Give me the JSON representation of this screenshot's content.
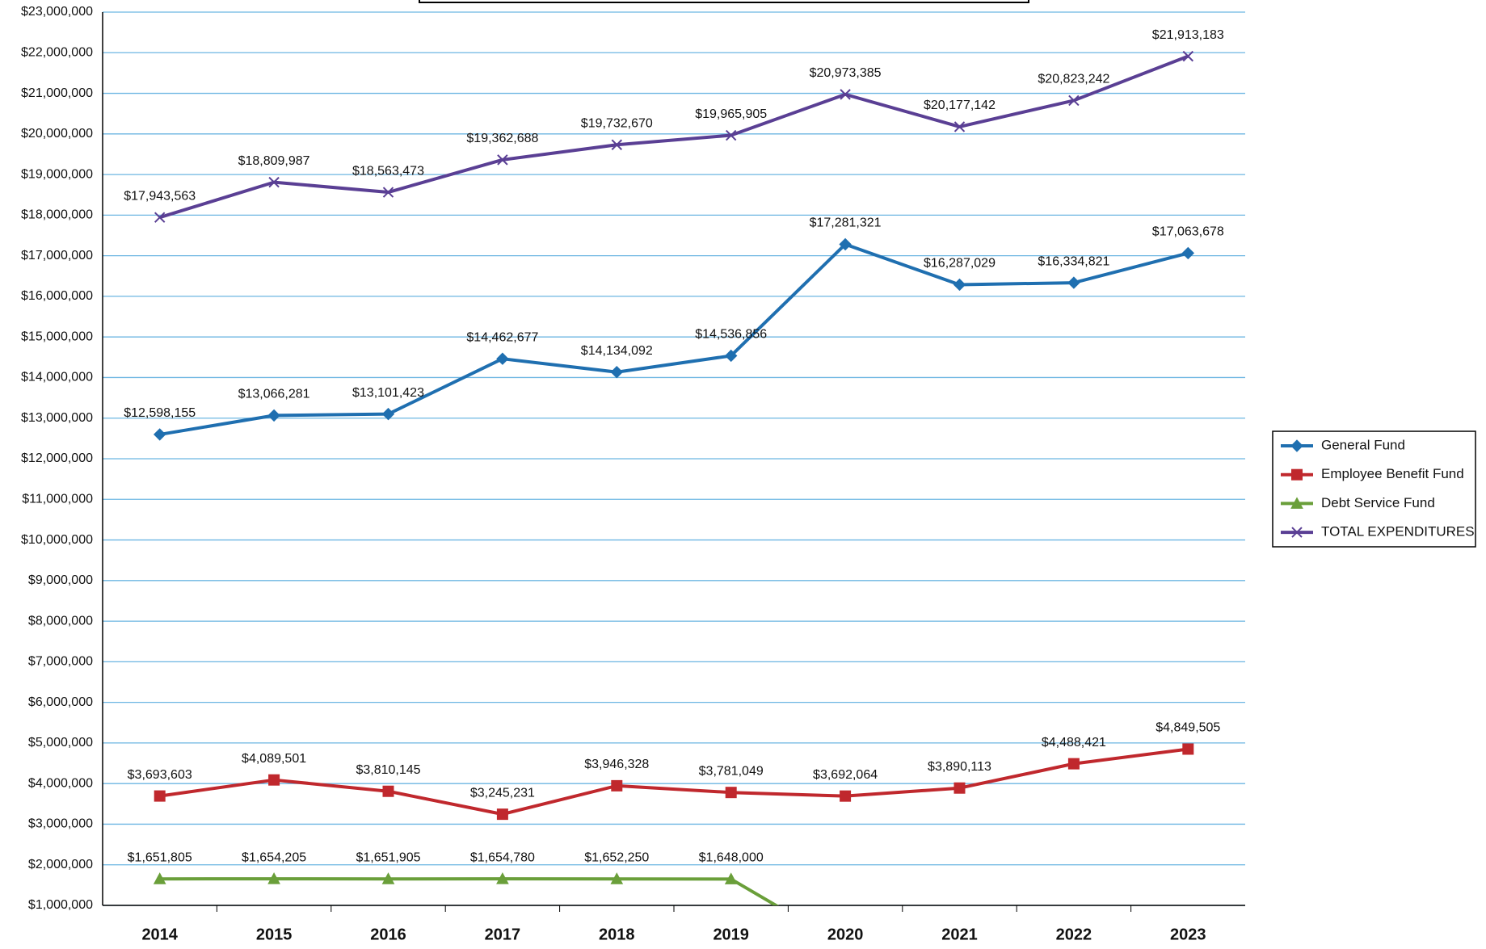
{
  "chart_data": {
    "type": "line",
    "categories": [
      "2014",
      "2015",
      "2016",
      "2017",
      "2018",
      "2019",
      "2020",
      "2021",
      "2022",
      "2023"
    ],
    "series": [
      {
        "name": "General Fund",
        "color": "#1f6fb0",
        "marker": "diamond",
        "values": [
          12598155,
          13066281,
          13101423,
          14462677,
          14134092,
          14536856,
          17281321,
          16287029,
          16334821,
          17063678
        ],
        "value_labels": [
          "$12,598,155",
          "$13,066,281",
          "$13,101,423",
          "$14,462,677",
          "$14,134,092",
          "$14,536,856",
          "$17,281,321",
          "$16,287,029",
          "$16,334,821",
          "$17,063,678"
        ]
      },
      {
        "name": "Employee Benefit Fund",
        "color": "#c0282d",
        "marker": "square",
        "values": [
          3693603,
          4089501,
          3810145,
          3245231,
          3946328,
          3781049,
          3692064,
          3890113,
          4488421,
          4849505
        ],
        "value_labels": [
          "$3,693,603",
          "$4,089,501",
          "$3,810,145",
          "$3,245,231",
          "$3,946,328",
          "$3,781,049",
          "$3,692,064",
          "$3,890,113",
          "$4,488,421",
          "$4,849,505"
        ]
      },
      {
        "name": "Debt Service Fund",
        "color": "#6a9f3a",
        "marker": "triangle",
        "values": [
          1651805,
          1654205,
          1651905,
          1654780,
          1652250,
          1648000,
          0,
          0,
          0,
          0
        ],
        "value_labels": [
          "$1,651,805",
          "$1,654,205",
          "$1,651,905",
          "$1,654,780",
          "$1,652,250",
          "$1,648,000",
          null,
          null,
          null,
          null
        ]
      },
      {
        "name": "TOTAL EXPENDITURES",
        "color": "#5a3f94",
        "marker": "x",
        "values": [
          17943563,
          18809987,
          18563473,
          19362688,
          19732670,
          19965905,
          20973385,
          20177142,
          20823242,
          21913183
        ],
        "value_labels": [
          "$17,943,563",
          "$18,809,987",
          "$18,563,473",
          "$19,362,688",
          "$19,732,670",
          "$19,965,905",
          "$20,973,385",
          "$20,177,142",
          "$20,823,242",
          "$21,913,183"
        ]
      }
    ],
    "ylim": [
      1000000,
      23000000
    ],
    "yticks": [
      {
        "value": 1000000,
        "label": "$1,000,000"
      },
      {
        "value": 2000000,
        "label": "$2,000,000"
      },
      {
        "value": 3000000,
        "label": "$3,000,000"
      },
      {
        "value": 4000000,
        "label": "$4,000,000"
      },
      {
        "value": 5000000,
        "label": "$5,000,000"
      },
      {
        "value": 6000000,
        "label": "$6,000,000"
      },
      {
        "value": 7000000,
        "label": "$7,000,000"
      },
      {
        "value": 8000000,
        "label": "$8,000,000"
      },
      {
        "value": 9000000,
        "label": "$9,000,000"
      },
      {
        "value": 10000000,
        "label": "$10,000,000"
      },
      {
        "value": 11000000,
        "label": "$11,000,000"
      },
      {
        "value": 12000000,
        "label": "$12,000,000"
      },
      {
        "value": 13000000,
        "label": "$13,000,000"
      },
      {
        "value": 14000000,
        "label": "$14,000,000"
      },
      {
        "value": 15000000,
        "label": "$15,000,000"
      },
      {
        "value": 16000000,
        "label": "$16,000,000"
      },
      {
        "value": 17000000,
        "label": "$17,000,000"
      },
      {
        "value": 18000000,
        "label": "$18,000,000"
      },
      {
        "value": 19000000,
        "label": "$19,000,000"
      },
      {
        "value": 20000000,
        "label": "$20,000,000"
      },
      {
        "value": 21000000,
        "label": "$21,000,000"
      },
      {
        "value": 22000000,
        "label": "$22,000,000"
      },
      {
        "value": 23000000,
        "label": "$23,000,000"
      }
    ],
    "grid": true,
    "legend": "right"
  }
}
